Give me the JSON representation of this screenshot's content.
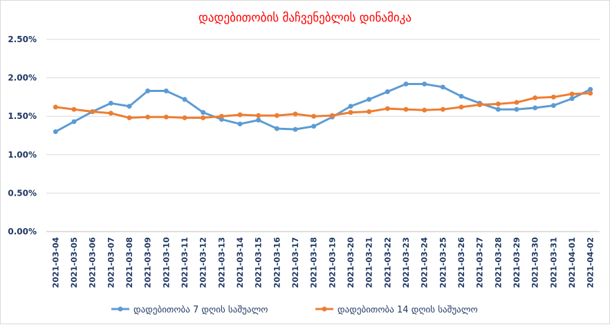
{
  "chart_data": {
    "type": "line",
    "title": "დადებითობის მაჩვენებლის დინამიკა",
    "xlabel": "",
    "ylabel": "",
    "ylim": [
      0,
      2.5
    ],
    "y_ticks": [
      "0.00%",
      "0.50%",
      "1.00%",
      "1.50%",
      "2.00%",
      "2.50%"
    ],
    "y_tick_values": [
      0,
      0.5,
      1.0,
      1.5,
      2.0,
      2.5
    ],
    "grid": "horizontal",
    "legend": "bottom",
    "categories": [
      "2021-03-04",
      "2021-03-05",
      "2021-03-06",
      "2021-03-07",
      "2021-03-08",
      "2021-03-09",
      "2021-03-10",
      "2021-03-11",
      "2021-03-12",
      "2021-03-13",
      "2021-03-14",
      "2021-03-15",
      "2021-03-16",
      "2021-03-17",
      "2021-03-18",
      "2021-03-19",
      "2021-03-20",
      "2021-03-21",
      "2021-03-22",
      "2021-03-23",
      "2021-03-24",
      "2021-03-25",
      "2021-03-26",
      "2021-03-27",
      "2021-03-28",
      "2021-03-29",
      "2021-03-30",
      "2021-03-31",
      "2021-04-01",
      "2021-04-02"
    ],
    "series": [
      {
        "name": "დადებითობა 7 დღის საშუალო",
        "color": "#5B9BD5",
        "values": [
          1.3,
          1.43,
          1.56,
          1.67,
          1.63,
          1.83,
          1.83,
          1.72,
          1.55,
          1.46,
          1.4,
          1.45,
          1.34,
          1.33,
          1.37,
          1.49,
          1.63,
          1.72,
          1.82,
          1.92,
          1.92,
          1.88,
          1.76,
          1.67,
          1.59,
          1.59,
          1.61,
          1.64,
          1.73,
          1.85
        ]
      },
      {
        "name": "დადებითობა 14 დღის საშუალო",
        "color": "#ED7D31",
        "values": [
          1.62,
          1.59,
          1.56,
          1.54,
          1.48,
          1.49,
          1.49,
          1.48,
          1.48,
          1.5,
          1.52,
          1.51,
          1.51,
          1.53,
          1.5,
          1.51,
          1.55,
          1.56,
          1.6,
          1.59,
          1.58,
          1.59,
          1.62,
          1.65,
          1.66,
          1.68,
          1.74,
          1.75,
          1.79,
          1.8
        ]
      }
    ],
    "title_color": "#FF0000",
    "axis_text_color": "#1F3864"
  }
}
